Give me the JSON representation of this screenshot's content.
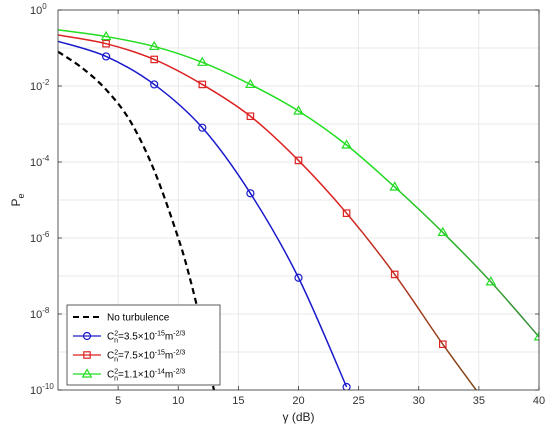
{
  "chart_data": {
    "type": "line",
    "xlabel": "γ (dB)",
    "ylabel": "P",
    "ylabel_sub": "e",
    "xlim": [
      0,
      40
    ],
    "ylim": [
      1e-10,
      1
    ],
    "yscale": "log",
    "grid": true,
    "legend_position": "bottom-left",
    "x_ticks": [
      5,
      10,
      15,
      20,
      25,
      30,
      35,
      40
    ],
    "x_tick_labels": [
      "5",
      "10",
      "15",
      "20",
      "25",
      "30",
      "35",
      "40"
    ],
    "y_ticks": [
      {
        "value": 1,
        "base": "10",
        "exp": "0"
      },
      {
        "value": 0.01,
        "base": "10",
        "exp": "-2"
      },
      {
        "value": 0.0001,
        "base": "10",
        "exp": "-4"
      },
      {
        "value": 1e-06,
        "base": "10",
        "exp": "-6"
      },
      {
        "value": 1e-08,
        "base": "10",
        "exp": "-8"
      },
      {
        "value": 1e-10,
        "base": "10",
        "exp": "-10"
      }
    ],
    "series": [
      {
        "legend": {
          "text": "No turbulence"
        },
        "color": "#000000",
        "dash": "6,4",
        "marker": "none",
        "x": [
          0,
          2,
          4,
          6,
          8,
          10,
          11,
          12,
          12.5,
          13
        ],
        "y": [
          0.08,
          0.03,
          0.008,
          0.0012,
          6e-05,
          1e-06,
          8e-08,
          4e-09,
          5e-10,
          9e-11
        ]
      },
      {
        "legend": {
          "pre": "C",
          "sup": "2",
          "sub": "n",
          "mid": "=3.5×10",
          "exp": "-15",
          "unit": "m",
          "unit_exp": "-2/3"
        },
        "color": "#1a1acc",
        "marker": "circle",
        "x": [
          0,
          4,
          8,
          12,
          16,
          20,
          24
        ],
        "y": [
          0.15,
          0.06,
          0.011,
          0.0008,
          1.5e-05,
          9e-08,
          1.2e-10
        ]
      },
      {
        "legend": {
          "pre": "C",
          "sup": "2",
          "sub": "n",
          "mid": "=7.5×10",
          "exp": "-15",
          "unit": "m",
          "unit_exp": "-2/3"
        },
        "color": "#dd2222",
        "color_tail": "#7a4a1a",
        "marker": "square",
        "x": [
          0,
          4,
          8,
          12,
          16,
          20,
          24,
          28,
          32,
          35
        ],
        "y": [
          0.22,
          0.13,
          0.05,
          0.011,
          0.0016,
          0.00011,
          4.5e-06,
          1.1e-07,
          1.6e-09,
          8e-11
        ]
      },
      {
        "legend": {
          "pre": "C",
          "sup": "2",
          "sub": "n",
          "mid": "=1.1×10",
          "exp": "-14",
          "unit": "m",
          "unit_exp": "-2/3"
        },
        "color": "#22dd22",
        "color_tail": "#3a8a3a",
        "marker": "triangle",
        "x": [
          0,
          4,
          8,
          12,
          16,
          20,
          24,
          28,
          32,
          36,
          40
        ],
        "y": [
          0.3,
          0.2,
          0.11,
          0.042,
          0.011,
          0.0022,
          0.00028,
          2.2e-05,
          1.4e-06,
          7e-08,
          2.5e-09
        ]
      }
    ]
  }
}
